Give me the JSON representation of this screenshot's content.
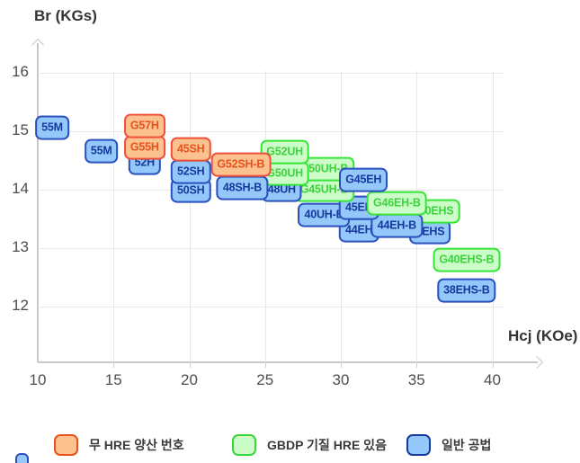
{
  "chart_data": {
    "type": "scatter",
    "marker_style": "labeled-box",
    "grid": true,
    "x_axis": {
      "label": "Hcj (KOe)",
      "ticks": [
        10,
        15,
        20,
        25,
        30,
        35,
        40
      ],
      "min": 10,
      "max": 43
    },
    "y_axis": {
      "label": "Br (KGs)",
      "ticks": [
        16,
        15,
        14,
        13,
        12
      ],
      "min": 11,
      "max": 16.5
    },
    "legend_position": "bottom",
    "categories": [
      {
        "id": "no_hre",
        "label": "무 HRE 양산 번호",
        "fill": "#FBC290",
        "border": "#F05038",
        "text": "#E8521E"
      },
      {
        "id": "gbdp",
        "label": "GBDP 기질 HRE 있음",
        "fill": "#CCFCC8",
        "border": "#38E438",
        "text": "#3CD43C"
      },
      {
        "id": "normal",
        "label": "일반 공법",
        "fill": "#95C8FA",
        "border": "#2A50C0",
        "text": "#16399E"
      }
    ],
    "points": [
      {
        "grade": "38EHS-B",
        "category": "normal",
        "hcj": 38.3,
        "br": 12.28
      },
      {
        "grade": "G40EHS-B",
        "category": "gbdp",
        "hcj": 38.3,
        "br": 12.8
      },
      {
        "grade": "2EHS",
        "category": "normal",
        "hcj": 35.9,
        "br": 13.28
      },
      {
        "grade": "40EHS",
        "category": "gbdp",
        "hcj": 36.3,
        "br": 13.63
      },
      {
        "grade": "44EH",
        "category": "normal",
        "hcj": 31.2,
        "br": 13.31
      },
      {
        "grade": "44EH-B",
        "category": "normal",
        "hcj": 33.7,
        "br": 13.38
      },
      {
        "grade": "40UH-B",
        "category": "normal",
        "hcj": 28.9,
        "br": 13.57
      },
      {
        "grade": "45EH",
        "category": "normal",
        "hcj": 31.2,
        "br": 13.69
      },
      {
        "grade": "G46EH-B",
        "category": "gbdp",
        "hcj": 33.7,
        "br": 13.77
      },
      {
        "grade": "G45UH-B",
        "category": "gbdp",
        "hcj": 28.9,
        "br": 14.0
      },
      {
        "grade": "G50UH-B",
        "category": "gbdp",
        "hcj": 28.9,
        "br": 14.35
      },
      {
        "grade": "G45EH",
        "category": "normal",
        "hcj": 31.5,
        "br": 14.17
      },
      {
        "grade": "48UH",
        "category": "normal",
        "hcj": 26.1,
        "br": 14.0
      },
      {
        "grade": "G50UH",
        "category": "gbdp",
        "hcj": 26.3,
        "br": 14.28
      },
      {
        "grade": "G52UH",
        "category": "gbdp",
        "hcj": 26.3,
        "br": 14.65
      },
      {
        "grade": "48SH-B",
        "category": "normal",
        "hcj": 23.5,
        "br": 14.03
      },
      {
        "grade": "G52SH-B",
        "category": "no_hre",
        "hcj": 23.4,
        "br": 14.43
      },
      {
        "grade": "50SH",
        "category": "normal",
        "hcj": 20.1,
        "br": 13.98
      },
      {
        "grade": "52SH",
        "category": "normal",
        "hcj": 20.1,
        "br": 14.31
      },
      {
        "grade": "45SH",
        "category": "no_hre",
        "hcj": 20.1,
        "br": 14.69
      },
      {
        "grade": "52H",
        "category": "normal",
        "hcj": 17.05,
        "br": 14.46
      },
      {
        "grade": "G55H",
        "category": "no_hre",
        "hcj": 17.05,
        "br": 14.72
      },
      {
        "grade": "G57H",
        "category": "no_hre",
        "hcj": 17.05,
        "br": 15.09
      },
      {
        "grade": "55M",
        "category": "normal",
        "hcj": 14.2,
        "br": 14.66
      },
      {
        "grade": "55M",
        "category": "normal",
        "hcj": 10.95,
        "br": 15.06
      }
    ]
  }
}
